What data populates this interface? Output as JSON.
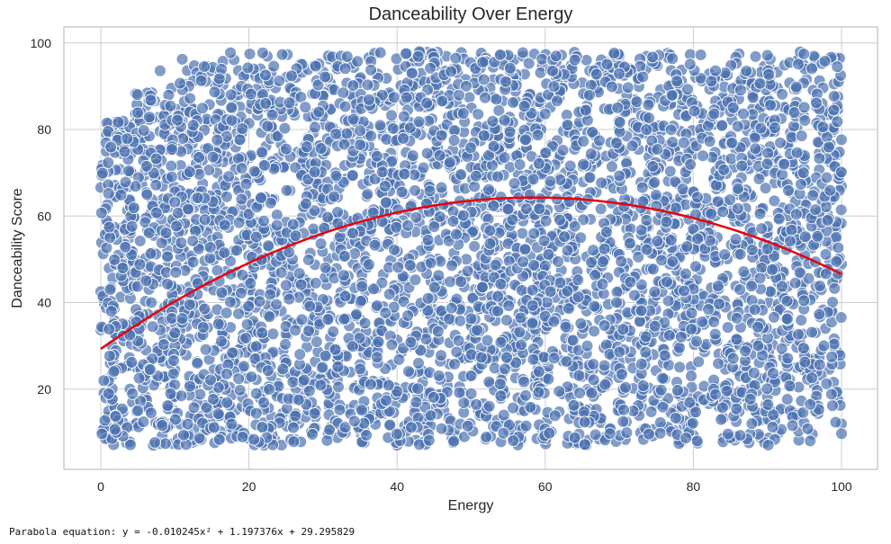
{
  "chart_data": {
    "type": "scatter",
    "title": "Danceability Over Energy",
    "xlabel": "Energy",
    "ylabel": "Danceability Score",
    "xlim": [
      -5,
      105
    ],
    "ylim": [
      2,
      103
    ],
    "xticks": [
      0,
      20,
      40,
      60,
      80,
      100
    ],
    "yticks": [
      20,
      40,
      60,
      80,
      100
    ],
    "xtick_labels": [
      "0",
      "20",
      "40",
      "60",
      "80",
      "100"
    ],
    "ytick_labels": [
      "20",
      "40",
      "60",
      "80",
      "100"
    ],
    "grid": true,
    "point_color": "#4c72b0",
    "point_edge_color": "#ffffff",
    "point_alpha": 0.7,
    "scatter_points": {
      "description_of_distribution": "dense cloud, energy 0-100, danceability ~6-99",
      "x_range": [
        0,
        100
      ],
      "y_range": [
        6,
        99
      ],
      "count": 4500
    },
    "fit_line": {
      "type": "quadratic",
      "a": -0.010245,
      "b": 1.197376,
      "c": 29.295829,
      "x_range": [
        0,
        100
      ],
      "color": "#e8000b"
    }
  },
  "footer": {
    "equation_text": "Parabola equation: y = -0.010245x² + 1.197376x + 29.295829"
  }
}
